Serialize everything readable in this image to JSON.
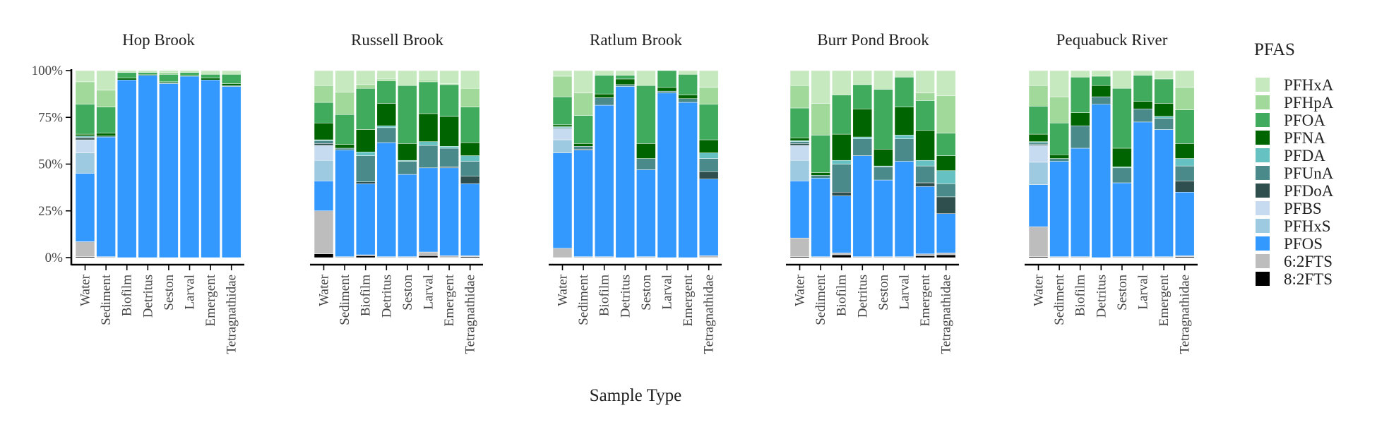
{
  "chart_data": {
    "type": "bar",
    "stacked": true,
    "normalized": true,
    "xlabel": "Sample Type",
    "ylabel": "",
    "ylim": [
      0,
      100
    ],
    "yticks": [
      "0%",
      "25%",
      "50%",
      "75%",
      "100%"
    ],
    "legend_title": "PFAS",
    "legend_position": "right",
    "categories": [
      "Water",
      "Sediment",
      "Biofilm",
      "Detritus",
      "Seston",
      "Larval",
      "Emergent",
      "Tetragnathidae"
    ],
    "compounds": [
      {
        "name": "8:2FTS",
        "color": "#000000"
      },
      {
        "name": "6:2FTS",
        "color": "#bdbdbd"
      },
      {
        "name": "PFOS",
        "color": "#3399ff"
      },
      {
        "name": "PFHxS",
        "color": "#9ecae1"
      },
      {
        "name": "PFBS",
        "color": "#c6dbef"
      },
      {
        "name": "PFDoA",
        "color": "#2f4f4f"
      },
      {
        "name": "PFUnA",
        "color": "#4a8a8a"
      },
      {
        "name": "PFDA",
        "color": "#66c2c2"
      },
      {
        "name": "PFNA",
        "color": "#006400"
      },
      {
        "name": "PFOA",
        "color": "#41ab5d"
      },
      {
        "name": "PFHpA",
        "color": "#a1d99b"
      },
      {
        "name": "PFHxA",
        "color": "#c7e9c0"
      }
    ],
    "panels": [
      {
        "title": "Hop Brook",
        "bars": [
          [
            0.5,
            8,
            36.5,
            11,
            7,
            1,
            0.5,
            0.5,
            1,
            16,
            12,
            6
          ],
          [
            0,
            0.5,
            64,
            0,
            0,
            0,
            0.5,
            0,
            1.5,
            14,
            9,
            10.5
          ],
          [
            0,
            0,
            95,
            0,
            0,
            0,
            0,
            0,
            1,
            3,
            0,
            1
          ],
          [
            0,
            0,
            97.5,
            0,
            0,
            0,
            0,
            0,
            0.5,
            1,
            0,
            1
          ],
          [
            0,
            0,
            93,
            0,
            0,
            0,
            0.5,
            0,
            0.5,
            4,
            1,
            1
          ],
          [
            0,
            0,
            97,
            0,
            0,
            0,
            0,
            0,
            0.5,
            1.5,
            0,
            1
          ],
          [
            0,
            0,
            95,
            0,
            0,
            0,
            0,
            0,
            1,
            2,
            0,
            2
          ],
          [
            0,
            0,
            91.5,
            0,
            0,
            0,
            0.5,
            0,
            1,
            5,
            0,
            2
          ]
        ]
      },
      {
        "title": "Russell Brook",
        "bars": [
          [
            2,
            23,
            16,
            11,
            8,
            1,
            1.5,
            0.5,
            9,
            11,
            9,
            8
          ],
          [
            0,
            0.5,
            57,
            0,
            0,
            0,
            1,
            0,
            2,
            16,
            12,
            11.5
          ],
          [
            1,
            0.5,
            38,
            0,
            0,
            1,
            14,
            2,
            12,
            22,
            2,
            7.5
          ],
          [
            0,
            0.5,
            61,
            0,
            0,
            0,
            8,
            1,
            12,
            12,
            1,
            4.5
          ],
          [
            0,
            0.5,
            44,
            0,
            0,
            0,
            7,
            0.5,
            9,
            31,
            0,
            8
          ],
          [
            1,
            2,
            45,
            0,
            0,
            0,
            12,
            2,
            15,
            17,
            1,
            5
          ],
          [
            0,
            1,
            47,
            0,
            0,
            0.5,
            10,
            1,
            16,
            17,
            0.5,
            7
          ],
          [
            0.5,
            0.5,
            38.5,
            0,
            0,
            4,
            8,
            3,
            7,
            19,
            10,
            9.5
          ]
        ]
      },
      {
        "title": "Ratlum Brook",
        "bars": [
          [
            0,
            5,
            51,
            7,
            6,
            0,
            0.5,
            0.5,
            1,
            15,
            11,
            3
          ],
          [
            0,
            0.5,
            57,
            0,
            0,
            0.5,
            1.5,
            0,
            1.5,
            15,
            12,
            12
          ],
          [
            0,
            0.5,
            81,
            0,
            0,
            0,
            4,
            0,
            2,
            10,
            0,
            2.5
          ],
          [
            0,
            0,
            91.5,
            0,
            0,
            0,
            1,
            0,
            3,
            2,
            0,
            2.5
          ],
          [
            0,
            0.5,
            46.5,
            0,
            0,
            0,
            6,
            0,
            8,
            31,
            0,
            8
          ],
          [
            0,
            0,
            88,
            0,
            0,
            0,
            1,
            0,
            2,
            9,
            0,
            0
          ],
          [
            0,
            0,
            83,
            0,
            0,
            0,
            2,
            0,
            2,
            11,
            0,
            2
          ],
          [
            0,
            1,
            41,
            0,
            0,
            4,
            7,
            3,
            7,
            19,
            9,
            9
          ]
        ]
      },
      {
        "title": "Burr Pond Brook",
        "bars": [
          [
            0.5,
            10,
            30.5,
            11,
            8,
            1,
            1,
            0.5,
            1.5,
            16,
            12,
            8
          ],
          [
            0,
            0.5,
            42,
            0,
            0,
            0,
            1.5,
            0,
            1.5,
            20,
            17,
            17.5
          ],
          [
            1.5,
            1,
            30.5,
            0,
            0,
            2,
            15,
            2,
            14,
            21,
            0,
            13
          ],
          [
            0,
            0.5,
            54,
            0,
            0,
            0,
            9,
            1,
            15,
            13,
            0,
            7.5
          ],
          [
            0,
            0.5,
            41,
            0,
            0,
            0,
            7,
            0.5,
            9,
            32,
            0,
            10
          ],
          [
            0,
            0.5,
            51,
            0,
            0,
            0,
            12,
            2,
            15,
            16,
            0,
            3.5
          ],
          [
            1,
            1,
            36,
            0,
            0,
            2,
            9,
            3,
            16,
            16,
            4,
            12
          ],
          [
            1.5,
            1,
            21,
            0,
            0,
            9,
            7,
            7,
            8,
            12,
            20,
            13.5
          ]
        ]
      },
      {
        "title": "Pequabuck River",
        "bars": [
          [
            0.5,
            16,
            22.5,
            12,
            9,
            0.5,
            1,
            0.5,
            4,
            15,
            11,
            8
          ],
          [
            0,
            0.5,
            51,
            0,
            0,
            0,
            1.5,
            0,
            2,
            17,
            14,
            14
          ],
          [
            0,
            0.5,
            58,
            0,
            0,
            0,
            12,
            0,
            7,
            19,
            0,
            3.5
          ],
          [
            0,
            0,
            82,
            0,
            0,
            0,
            4,
            0,
            6,
            5,
            0,
            3
          ],
          [
            0,
            0.5,
            39.5,
            0,
            0,
            0,
            8,
            0.5,
            10,
            32,
            0,
            9.5
          ],
          [
            0,
            0.5,
            72,
            0,
            0,
            0,
            7,
            0,
            4,
            14,
            0,
            2.5
          ],
          [
            0,
            0.5,
            68,
            0,
            0,
            0,
            6,
            1,
            7,
            13,
            0,
            4.5
          ],
          [
            0.5,
            0.5,
            34,
            0,
            0,
            6,
            8,
            4,
            8,
            18,
            12,
            9
          ]
        ]
      }
    ]
  }
}
